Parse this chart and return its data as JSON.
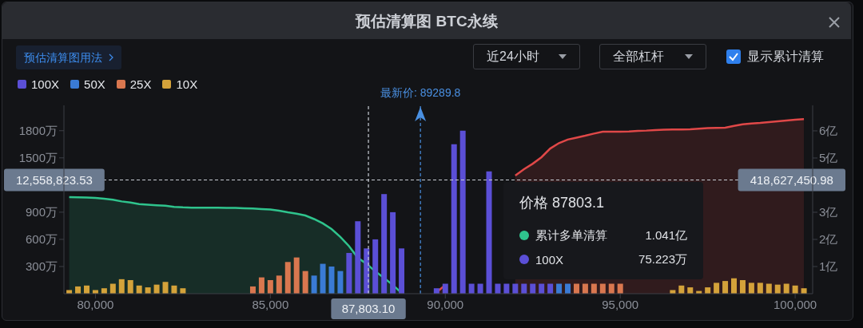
{
  "chart_data": {
    "type": "bar",
    "title": "预估清算图 BTC永续",
    "stacked": true,
    "legend": "top left",
    "annotations": [
      "预估清算图用法",
      "近24小时",
      "全部杠杆",
      "显示累计清算",
      "价格 87803.1",
      "1.041亿",
      "75.223万",
      "12,558,823.53",
      "418,627,450.98"
    ],
    "xlim": [
      79100,
      100500
    ],
    "xticks": [
      {
        "value": 80000,
        "label": "80,000"
      },
      {
        "value": 85000,
        "label": "85,000"
      },
      {
        "value": 90000,
        "label": "90,000"
      },
      {
        "value": 95000,
        "label": "95,000"
      },
      {
        "value": 100000,
        "label": "100,000"
      }
    ],
    "ylim": [
      0,
      2080
    ],
    "yticks": [
      {
        "value": 300,
        "label": "300万"
      },
      {
        "value": 600,
        "label": "600万"
      },
      {
        "value": 900,
        "label": "900万"
      },
      {
        "value": 1500,
        "label": "1500万"
      },
      {
        "value": 1800,
        "label": "1800万"
      }
    ],
    "y2lim": [
      0,
      6.94
    ],
    "y2ticks": [
      {
        "value": 1,
        "label": "1亿"
      },
      {
        "value": 2,
        "label": "2亿"
      },
      {
        "value": 3,
        "label": "3亿"
      },
      {
        "value": 5,
        "label": "5亿"
      },
      {
        "value": 6,
        "label": "6亿"
      }
    ],
    "ref_lines": [
      {
        "axis": "x",
        "value": 87803.1,
        "label": "87,803.10",
        "color": "#c8ccd4"
      },
      {
        "axis": "x",
        "value": 89289.8,
        "label": "最新价: 89289.8",
        "color": "#4a90e2"
      },
      {
        "axis": "y",
        "value": 1255.9,
        "color": "#c8ccd4"
      }
    ],
    "x": [
      79250,
      79500,
      79750,
      80000,
      80250,
      80500,
      80750,
      81000,
      81250,
      81500,
      81750,
      82000,
      82250,
      82500,
      82750,
      83000,
      83250,
      83500,
      83750,
      84000,
      84250,
      84500,
      84750,
      85000,
      85250,
      85500,
      85750,
      86000,
      86250,
      86500,
      86750,
      87000,
      87250,
      87500,
      87750,
      88000,
      88250,
      88500,
      88750,
      89000,
      89250,
      89500,
      89750,
      90000,
      90250,
      90500,
      90750,
      91000,
      91250,
      91500,
      91750,
      92000,
      92250,
      92500,
      92750,
      93000,
      93250,
      93500,
      93750,
      94000,
      94250,
      94500,
      94750,
      95000,
      95250,
      95500,
      95750,
      96000,
      96250,
      96500,
      96750,
      97000,
      97250,
      97500,
      97750,
      98000,
      98250,
      98500,
      98750,
      99000,
      99250,
      99500,
      99750,
      100000,
      100250
    ],
    "series": [
      {
        "name": "100X",
        "color": "#5b4fd6",
        "values": [
          null,
          null,
          null,
          null,
          null,
          null,
          null,
          null,
          null,
          null,
          null,
          null,
          null,
          null,
          null,
          null,
          null,
          null,
          null,
          null,
          null,
          null,
          null,
          null,
          null,
          null,
          null,
          null,
          null,
          null,
          null,
          null,
          450,
          800,
          500,
          600,
          1100,
          900,
          500,
          null,
          null,
          null,
          60,
          110,
          1650,
          1800,
          110,
          110,
          1350,
          110,
          110,
          110,
          110,
          110,
          110,
          110,
          null,
          null,
          null,
          null,
          null,
          null,
          null,
          null,
          null,
          null,
          null,
          null,
          null,
          null,
          null,
          null,
          null,
          null,
          null,
          null,
          null,
          null,
          null,
          null,
          null,
          null,
          null,
          null,
          null
        ]
      },
      {
        "name": "50X",
        "color": "#3a7bd5",
        "values": [
          null,
          null,
          null,
          null,
          null,
          null,
          null,
          null,
          null,
          null,
          null,
          null,
          null,
          null,
          null,
          null,
          null,
          null,
          null,
          null,
          null,
          null,
          null,
          null,
          null,
          null,
          null,
          null,
          200,
          330,
          300,
          250,
          null,
          null,
          null,
          null,
          null,
          null,
          null,
          null,
          null,
          null,
          null,
          null,
          null,
          null,
          null,
          null,
          null,
          null,
          null,
          null,
          null,
          null,
          null,
          null,
          110,
          110,
          null,
          null,
          null,
          null,
          null,
          null,
          null,
          null,
          null,
          null,
          null,
          null,
          null,
          null,
          null,
          null,
          null,
          null,
          null,
          null,
          null,
          null,
          null,
          null,
          null,
          null,
          null
        ]
      },
      {
        "name": "25X",
        "color": "#d9774f",
        "values": [
          null,
          null,
          null,
          null,
          null,
          null,
          null,
          null,
          null,
          null,
          null,
          null,
          null,
          null,
          null,
          null,
          null,
          null,
          null,
          null,
          null,
          80,
          180,
          150,
          200,
          350,
          400,
          250,
          null,
          null,
          null,
          null,
          null,
          null,
          null,
          null,
          null,
          null,
          null,
          null,
          null,
          null,
          null,
          null,
          null,
          null,
          null,
          null,
          null,
          null,
          null,
          null,
          null,
          null,
          null,
          null,
          null,
          null,
          110,
          110,
          110,
          110,
          110,
          110,
          null,
          null,
          null,
          null,
          null,
          null,
          null,
          null,
          null,
          null,
          null,
          null,
          null,
          null,
          null,
          null,
          null,
          null,
          null,
          null,
          null
        ]
      },
      {
        "name": "10X",
        "color": "#d4a23a",
        "values": [
          40,
          80,
          90,
          40,
          60,
          110,
          160,
          150,
          90,
          70,
          100,
          130,
          90,
          60,
          null,
          null,
          null,
          null,
          null,
          null,
          null,
          null,
          null,
          null,
          null,
          null,
          null,
          null,
          null,
          null,
          null,
          null,
          null,
          null,
          null,
          null,
          null,
          null,
          null,
          null,
          null,
          null,
          null,
          null,
          null,
          null,
          null,
          null,
          null,
          null,
          null,
          null,
          null,
          null,
          null,
          null,
          null,
          null,
          null,
          null,
          null,
          null,
          null,
          null,
          null,
          null,
          null,
          null,
          null,
          40,
          90,
          70,
          30,
          70,
          120,
          140,
          170,
          150,
          120,
          120,
          110,
          100,
          110,
          90,
          60
        ]
      },
      {
        "name": "累计多单清算",
        "type": "area",
        "axis": "y2",
        "color": "#2fc48d",
        "values": [
          3.56,
          3.55,
          3.54,
          3.53,
          3.5,
          3.46,
          3.4,
          3.36,
          3.3,
          3.28,
          3.26,
          3.24,
          3.2,
          3.18,
          3.17,
          3.17,
          3.17,
          3.17,
          3.16,
          3.16,
          3.15,
          3.14,
          3.12,
          3.1,
          3.06,
          3.0,
          2.95,
          2.88,
          2.75,
          2.59,
          2.38,
          2.09,
          1.75,
          1.32,
          1.1,
          0.82,
          0.58,
          0.32,
          0.03,
          null,
          null,
          null,
          null,
          null,
          null,
          null,
          null,
          null,
          null,
          null,
          null,
          null,
          null,
          null,
          null,
          null,
          null,
          null,
          null,
          null,
          null,
          null,
          null,
          null,
          null,
          null,
          null,
          null,
          null,
          null,
          null,
          null,
          null,
          null,
          null,
          null,
          null,
          null,
          null,
          null,
          null,
          null,
          null,
          null,
          null
        ]
      },
      {
        "type": "area",
        "axis": "y2",
        "color": "#e04848",
        "values": [
          null,
          null,
          null,
          null,
          null,
          null,
          null,
          null,
          null,
          null,
          null,
          null,
          null,
          null,
          null,
          null,
          null,
          null,
          null,
          null,
          null,
          null,
          null,
          null,
          null,
          null,
          null,
          null,
          null,
          null,
          null,
          null,
          null,
          null,
          null,
          null,
          null,
          null,
          null,
          null,
          null,
          null,
          0.05,
          0.32,
          null,
          null,
          null,
          null,
          null,
          null,
          null,
          4.35,
          4.59,
          4.79,
          5.03,
          5.35,
          5.55,
          5.68,
          5.75,
          5.82,
          5.9,
          5.97,
          5.97,
          5.97,
          5.98,
          6.0,
          6.01,
          6.03,
          6.04,
          6.05,
          6.05,
          6.06,
          6.08,
          6.1,
          6.11,
          6.12,
          6.18,
          6.24,
          6.27,
          6.29,
          6.32,
          6.35,
          6.38,
          6.41,
          6.43
        ]
      }
    ]
  }
}
